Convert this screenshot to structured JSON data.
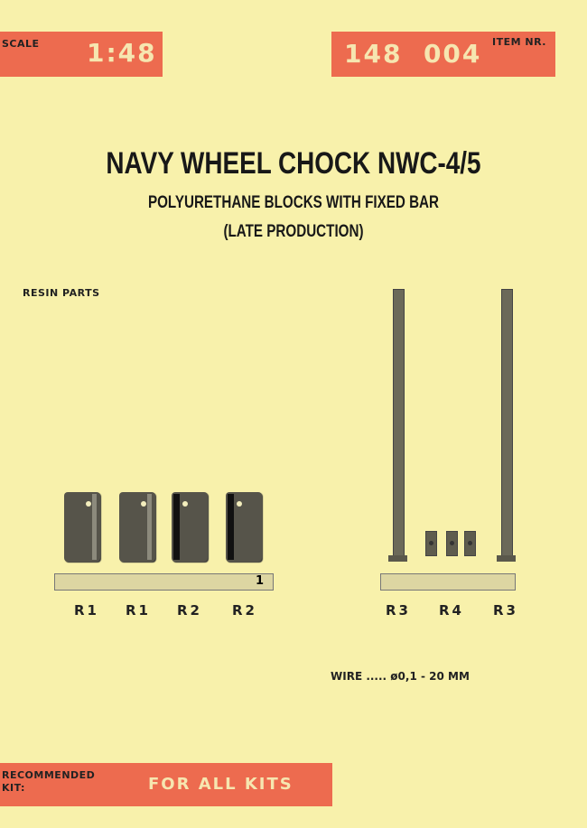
{
  "header": {
    "scale_label": "SCALE",
    "scale_value": "1:48",
    "item_value": "148  004",
    "item_label": "ITEM NR."
  },
  "title": "NAVY WHEEL CHOCK NWC-4/5",
  "subtitle_1": "POLYURETHANE BLOCKS WITH FIXED BAR",
  "subtitle_2": "(LATE PRODUCTION)",
  "section_label": "RESIN PARTS",
  "sprue_left_number": "1",
  "part_labels_left": [
    "R1",
    "R1",
    "R2",
    "R2"
  ],
  "part_labels_right": [
    "R3",
    "R4",
    "R3"
  ],
  "wire_note": "WIRE ..... ø0,1 - 20 MM",
  "footer": {
    "label_line1": "RECOMMENDED",
    "label_line2": "KIT:",
    "value": "FOR ALL KITS"
  },
  "colors": {
    "paper": "#f8f1ab",
    "accent": "#ed6b4f",
    "resin": "#56544a"
  }
}
